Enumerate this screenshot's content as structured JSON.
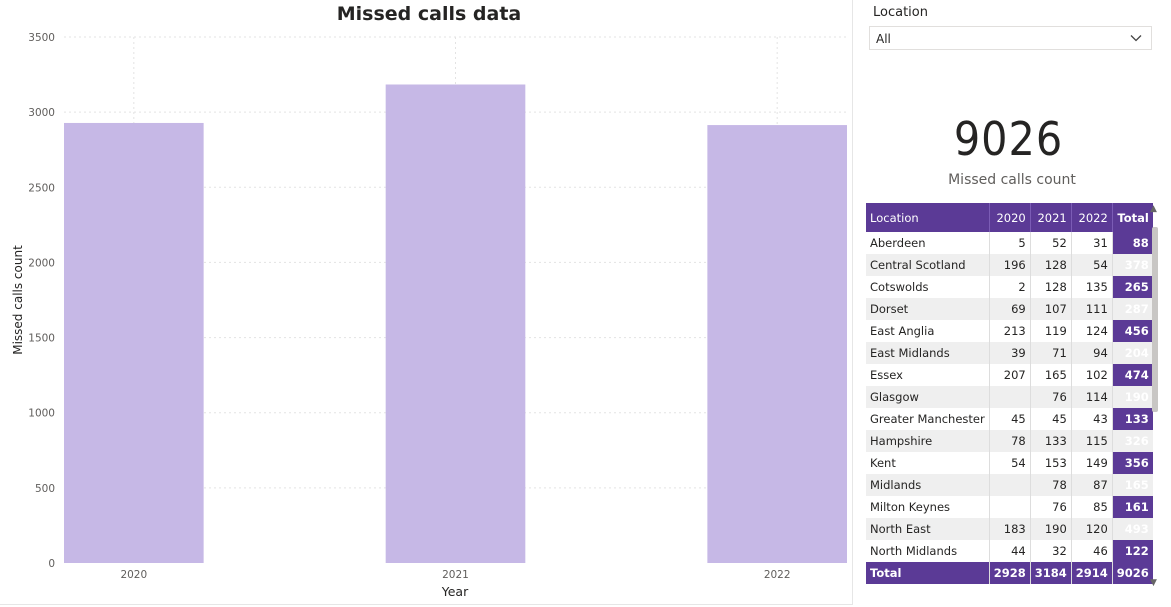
{
  "chart_data": {
    "type": "bar",
    "title": "Missed calls data",
    "xlabel": "Year",
    "ylabel": "Missed calls count",
    "categories": [
      "2020",
      "2021",
      "2022"
    ],
    "values": [
      2928,
      3184,
      2914
    ],
    "ylim": [
      0,
      3500
    ],
    "yticks": [
      0,
      500,
      1000,
      1500,
      2000,
      2500,
      3000,
      3500
    ],
    "grid": true,
    "bar_color": "#c6b8e6"
  },
  "filter": {
    "label": "Location",
    "value": "All"
  },
  "kpi": {
    "value": "9026",
    "label": "Missed calls count"
  },
  "table": {
    "header_color": "#5b3a96",
    "columns": [
      "Location",
      "2020",
      "2021",
      "2022",
      "Total"
    ],
    "rows": [
      [
        "Aberdeen",
        "5",
        "52",
        "31",
        "88"
      ],
      [
        "Central Scotland",
        "196",
        "128",
        "54",
        "378"
      ],
      [
        "Cotswolds",
        "2",
        "128",
        "135",
        "265"
      ],
      [
        "Dorset",
        "69",
        "107",
        "111",
        "287"
      ],
      [
        "East Anglia",
        "213",
        "119",
        "124",
        "456"
      ],
      [
        "East Midlands",
        "39",
        "71",
        "94",
        "204"
      ],
      [
        "Essex",
        "207",
        "165",
        "102",
        "474"
      ],
      [
        "Glasgow",
        "",
        "76",
        "114",
        "190"
      ],
      [
        "Greater Manchester",
        "45",
        "45",
        "43",
        "133"
      ],
      [
        "Hampshire",
        "78",
        "133",
        "115",
        "326"
      ],
      [
        "Kent",
        "54",
        "153",
        "149",
        "356"
      ],
      [
        "Midlands",
        "",
        "78",
        "87",
        "165"
      ],
      [
        "Milton Keynes",
        "",
        "76",
        "85",
        "161"
      ],
      [
        "North East",
        "183",
        "190",
        "120",
        "493"
      ],
      [
        "North Midlands",
        "44",
        "32",
        "46",
        "122"
      ]
    ],
    "footer": [
      "Total",
      "2928",
      "3184",
      "2914",
      "9026"
    ]
  }
}
